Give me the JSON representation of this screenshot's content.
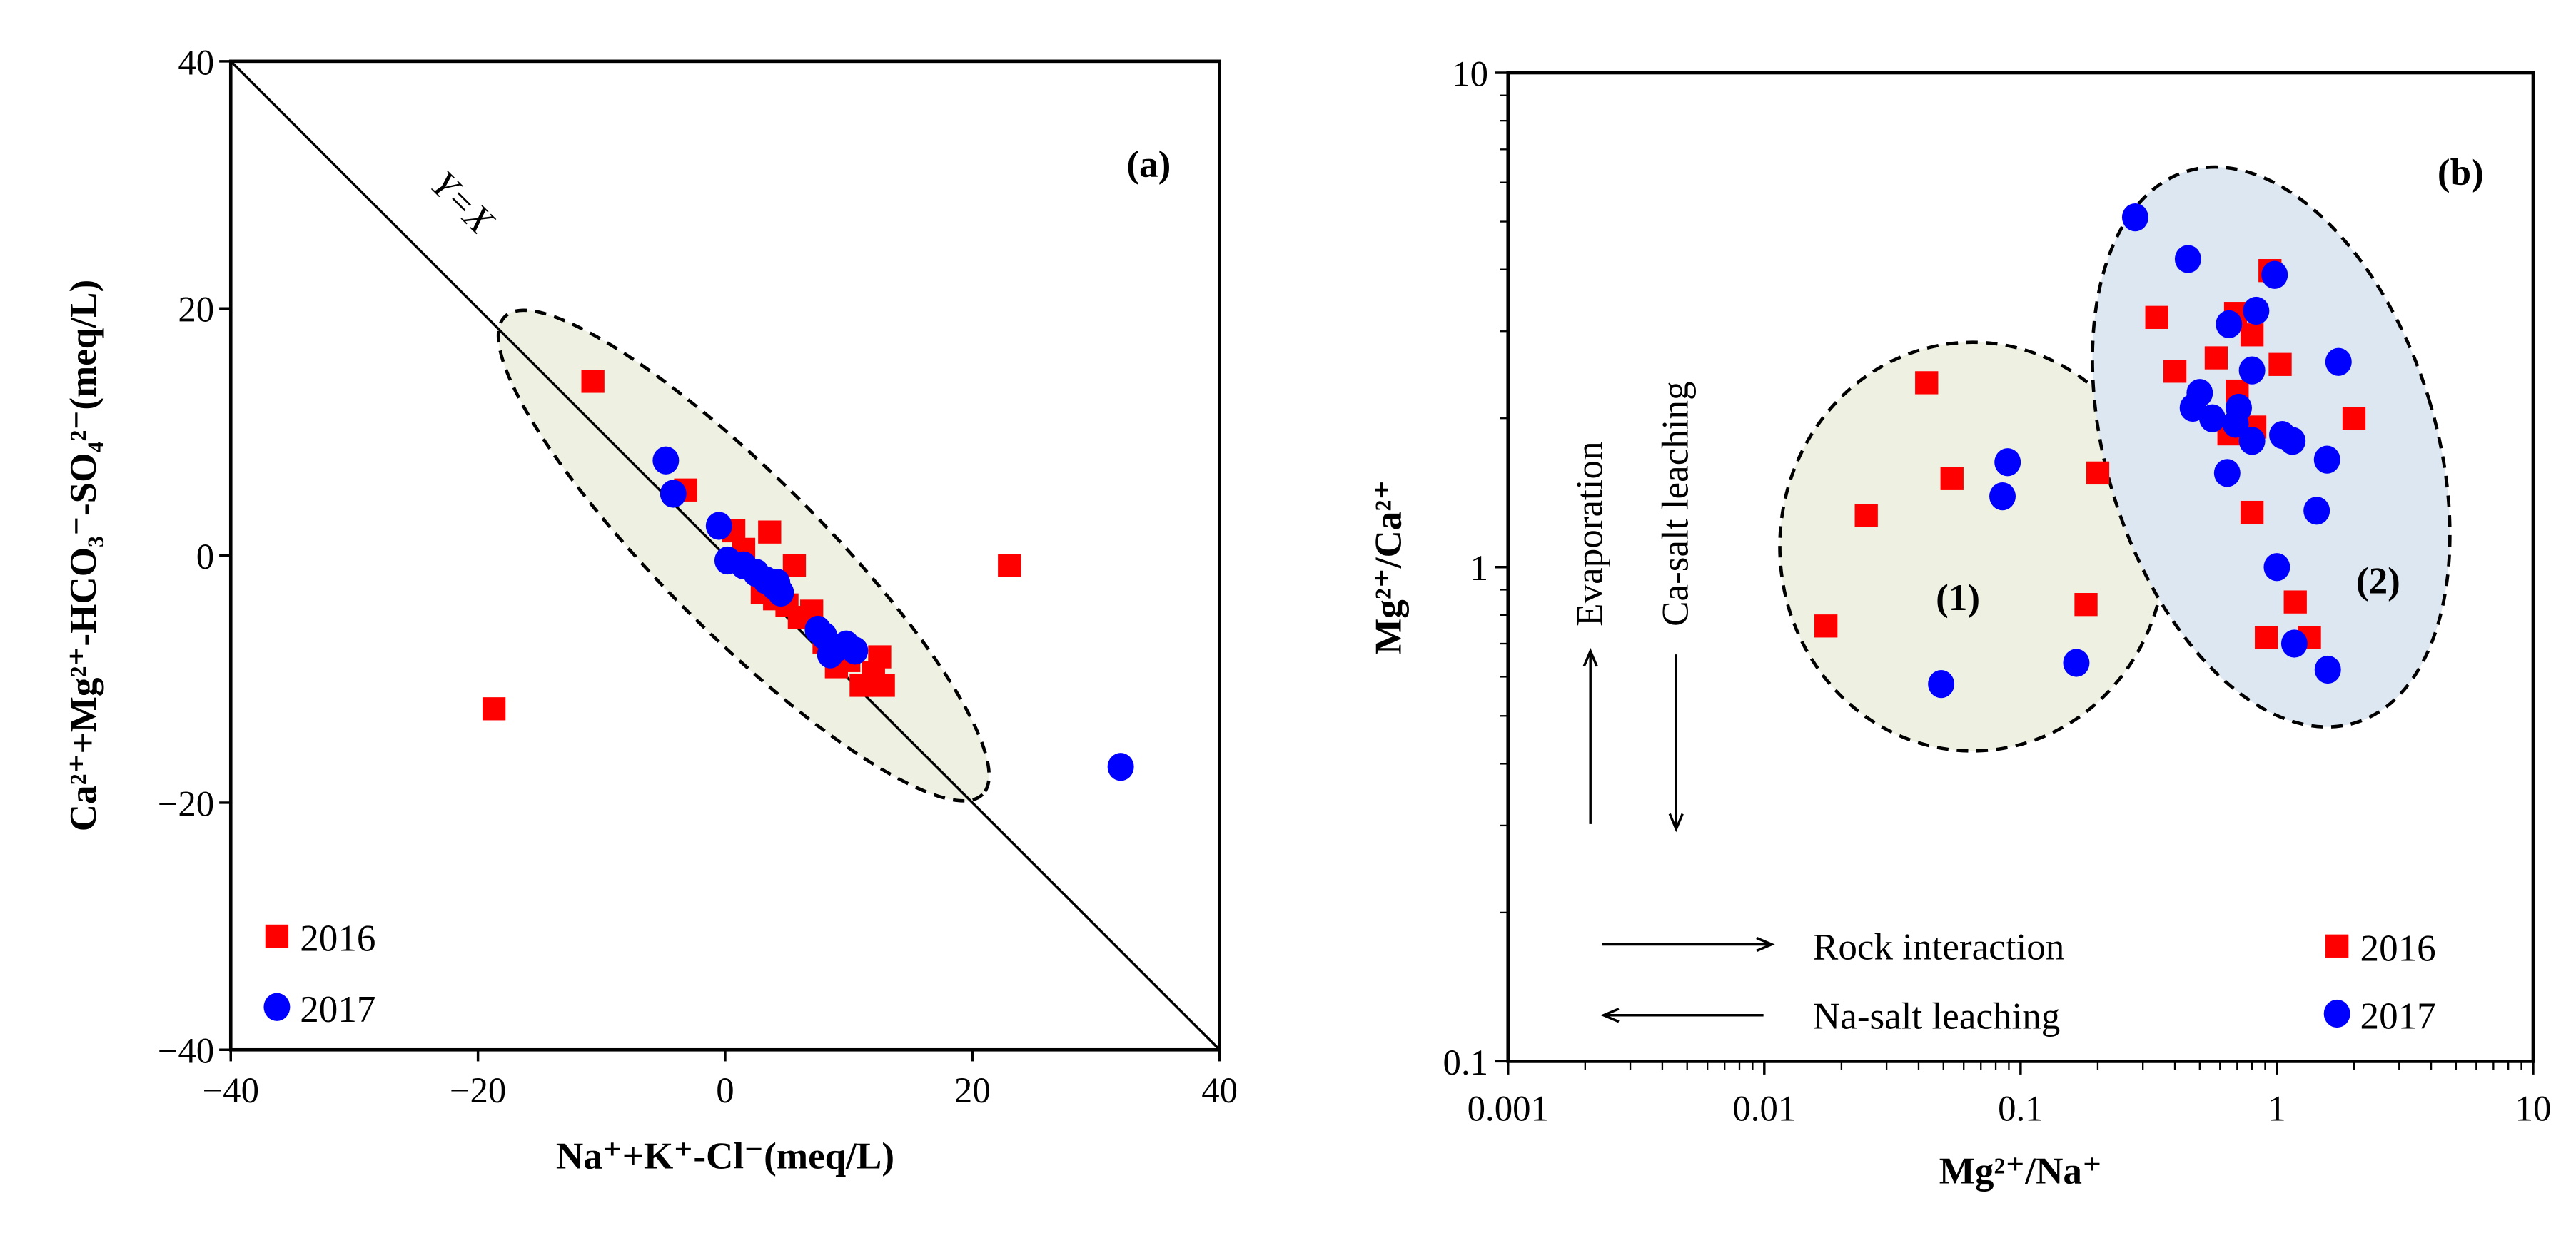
{
  "colors": {
    "s2016": "#ff0000",
    "s2017": "#0000ff",
    "ellipse_a": "#eef1e2",
    "ellipse_b1": "#eef1e2",
    "ellipse_b2": "#dde7f1"
  },
  "chart_data": [
    {
      "type": "scatter",
      "panel_label": "(a)",
      "xlabel": "Na⁺+K⁺-Cl⁻(meq/L)",
      "ylabel": "Ca²⁺+Mg²⁺-HCO₃⁻-SO₄²⁻(meq/L)",
      "xlim": [
        -40,
        40
      ],
      "ylim": [
        -40,
        40
      ],
      "xticks": [
        "-40",
        "-20",
        "0",
        "20",
        "40"
      ],
      "yticks": [
        "-40",
        "-20",
        "0",
        "20",
        "40"
      ],
      "line_label": "Y=X",
      "grid": false,
      "legend": {
        "placement": "bottom-left",
        "entries": [
          "2016",
          "2017"
        ]
      },
      "series": [
        {
          "name": "2016",
          "marker": "square",
          "points": [
            [
              -18.7,
              -12.4
            ],
            [
              -10.7,
              14.1
            ],
            [
              -3.2,
              5.3
            ],
            [
              0.7,
              2.0
            ],
            [
              1.5,
              0.5
            ],
            [
              3.6,
              1.9
            ],
            [
              5.6,
              -0.8
            ],
            [
              23,
              -0.8
            ],
            [
              3,
              -3
            ],
            [
              4,
              -3.5
            ],
            [
              5,
              -4
            ],
            [
              6,
              -5
            ],
            [
              7,
              -4.5
            ],
            [
              8,
              -7
            ],
            [
              9,
              -9
            ],
            [
              10,
              -8.5
            ],
            [
              11,
              -10.5
            ],
            [
              12,
              -9.5
            ],
            [
              12.5,
              -8.2
            ],
            [
              12.8,
              -10.5
            ]
          ]
        },
        {
          "name": "2017",
          "marker": "circle",
          "points": [
            [
              -4.8,
              7.7
            ],
            [
              -4.2,
              5.0
            ],
            [
              -0.5,
              2.4
            ],
            [
              0.2,
              -0.4
            ],
            [
              1.5,
              -0.8
            ],
            [
              2.5,
              -1.4
            ],
            [
              3.3,
              -2.0
            ],
            [
              4.0,
              -2.5
            ],
            [
              4.5,
              -3.0
            ],
            [
              4.2,
              -2.2
            ],
            [
              7.5,
              -6.0
            ],
            [
              8.0,
              -6.5
            ],
            [
              8.5,
              -8.0
            ],
            [
              9.0,
              -7.5
            ],
            [
              9.8,
              -7.2
            ],
            [
              10.5,
              -7.7
            ],
            [
              32,
              -17.1
            ]
          ]
        }
      ]
    },
    {
      "type": "scatter",
      "panel_label": "(b)",
      "xlabel": "Mg²⁺/Na⁺",
      "ylabel": "Mg²⁺/Ca²⁺",
      "xscale": "log",
      "yscale": "log",
      "xlim": [
        0.001,
        10
      ],
      "ylim": [
        0.1,
        10
      ],
      "xticks": [
        "0.001",
        "0.01",
        "0.1",
        "1",
        "10"
      ],
      "yticks": [
        "0.1",
        "1",
        "10"
      ],
      "grid": false,
      "group_labels": [
        "(1)",
        "(2)"
      ],
      "annotations": {
        "evaporation": "Evaporation",
        "ca_salt": "Ca-salt leaching",
        "rock": "Rock interaction",
        "na_salt": "Na-salt leaching"
      },
      "legend": {
        "placement": "bottom-right",
        "entries": [
          "2016",
          "2017"
        ]
      },
      "series": [
        {
          "name": "2016",
          "marker": "square",
          "points": [
            [
              0.0174,
              0.76
            ],
            [
              0.025,
              1.27
            ],
            [
              0.043,
              2.36
            ],
            [
              0.054,
              1.51
            ],
            [
              0.2,
              1.55
            ],
            [
              0.18,
              0.84
            ],
            [
              0.34,
              3.2
            ],
            [
              0.4,
              2.49
            ],
            [
              0.58,
              2.65
            ],
            [
              0.69,
              3.26
            ],
            [
              0.8,
              2.95
            ],
            [
              0.94,
              3.98
            ],
            [
              1.03,
              2.57
            ],
            [
              2.0,
              2.0
            ],
            [
              0.65,
              1.86
            ],
            [
              0.8,
              1.29
            ],
            [
              0.82,
              1.92
            ],
            [
              1.18,
              0.85
            ],
            [
              0.91,
              0.72
            ],
            [
              1.34,
              0.72
            ],
            [
              0.7,
              2.27
            ]
          ]
        },
        {
          "name": "2017",
          "marker": "circle",
          "points": [
            [
              0.049,
              0.58
            ],
            [
              0.089,
              1.63
            ],
            [
              0.085,
              1.39
            ],
            [
              0.165,
              0.64
            ],
            [
              0.28,
              5.1
            ],
            [
              0.45,
              4.2
            ],
            [
              0.98,
              3.9
            ],
            [
              0.83,
              3.3
            ],
            [
              0.65,
              3.1
            ],
            [
              0.8,
              2.5
            ],
            [
              1.74,
              2.6
            ],
            [
              0.5,
              2.25
            ],
            [
              0.47,
              2.1
            ],
            [
              0.56,
              2.0
            ],
            [
              0.71,
              2.1
            ],
            [
              0.69,
              1.95
            ],
            [
              0.8,
              1.8
            ],
            [
              1.05,
              1.85
            ],
            [
              1.15,
              1.8
            ],
            [
              1.57,
              1.65
            ],
            [
              0.64,
              1.55
            ],
            [
              1.43,
              1.3
            ],
            [
              1.0,
              1.0
            ],
            [
              1.17,
              0.7
            ],
            [
              1.58,
              0.62
            ]
          ]
        }
      ]
    }
  ]
}
